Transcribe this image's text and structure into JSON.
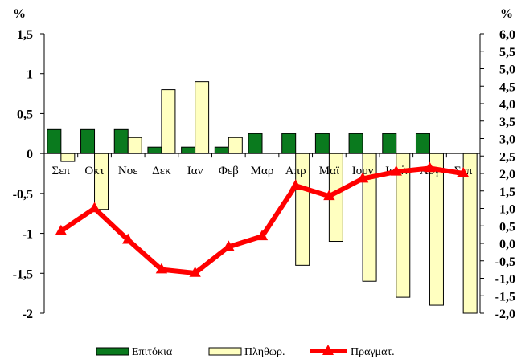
{
  "chart_data": {
    "type": "bar+line",
    "categories": [
      "Σεπ",
      "Οκτ",
      "Νοε",
      "Δεκ",
      "Ιαν",
      "Φεβ",
      "Μαρ",
      "Απρ",
      "Μαϊ",
      "Ιουν",
      "Ιουλ",
      "Αυγ",
      "Σεπ"
    ],
    "left_axis": {
      "unit_label": "%",
      "range": [
        -2,
        1.5
      ],
      "ticks": [
        "1,5",
        "1",
        "0,5",
        "0",
        "-0,5",
        "-1",
        "-1,5",
        "-2"
      ]
    },
    "right_axis": {
      "unit_label": "%",
      "range": [
        -2.0,
        6.0
      ],
      "ticks": [
        "6,0",
        "5,5",
        "5,0",
        "4,5",
        "4,0",
        "3,5",
        "3,0",
        "2,5",
        "2,0",
        "1,5",
        "1,0",
        "0,5",
        "0,0",
        "-0,5",
        "-1,0",
        "-1,5",
        "-2,0"
      ]
    },
    "series": [
      {
        "name": "Επιτόκια",
        "kind": "bar",
        "axis": "left",
        "color": "#0a7a1e",
        "values": [
          0.3,
          0.3,
          0.3,
          0.08,
          0.08,
          0.08,
          0.25,
          0.25,
          0.25,
          0.25,
          0.25,
          0.25,
          null
        ]
      },
      {
        "name": "Πληθωρ.",
        "kind": "bar",
        "axis": "left",
        "color": "#ffffc0",
        "values": [
          -0.1,
          -0.7,
          0.2,
          0.8,
          0.9,
          0.2,
          null,
          -1.4,
          -1.1,
          -1.6,
          -1.8,
          -1.9,
          -2.0
        ]
      },
      {
        "name": "Πραγματ.",
        "kind": "line",
        "axis": "right",
        "color": "#ff0000",
        "values": [
          0.35,
          1.0,
          0.1,
          -0.75,
          -0.85,
          -0.1,
          0.2,
          1.65,
          1.35,
          1.85,
          2.05,
          2.15,
          2.0
        ]
      }
    ],
    "legend": {
      "position": "bottom",
      "items": [
        "Επιτόκια",
        "Πληθωρ.",
        "Πραγματ."
      ]
    },
    "grid": false
  }
}
